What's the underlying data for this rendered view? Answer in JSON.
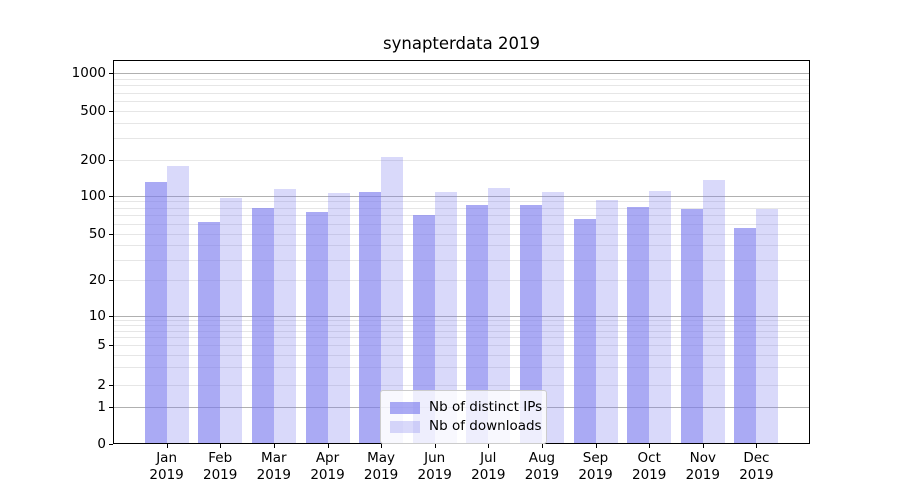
{
  "chart_data": {
    "type": "bar",
    "title": "synapterdata 2019",
    "categories": [
      "Jan",
      "Feb",
      "Mar",
      "Apr",
      "May",
      "Jun",
      "Jul",
      "Aug",
      "Sep",
      "Oct",
      "Nov",
      "Dec"
    ],
    "year": "2019",
    "series": [
      {
        "name": "Nb of distinct IPs",
        "color": "rgba(125,125,238,0.65)",
        "values": [
          130,
          62,
          80,
          75,
          108,
          71,
          85,
          85,
          66,
          81,
          78,
          56
        ]
      },
      {
        "name": "Nb of downloads",
        "color": "rgba(125,125,238,0.29)",
        "values": [
          175,
          95,
          113,
          106,
          210,
          107,
          115,
          107,
          92,
          109,
          135,
          78
        ]
      }
    ],
    "yscale": "symlog",
    "yticks": [
      1000,
      500,
      200,
      100,
      50,
      20,
      10,
      5,
      2,
      1,
      0
    ],
    "grid": "horizontal, major and minor",
    "legend_position": "lower center inside axes",
    "colors": {
      "bar_dark_on_white": "#aaaaf4",
      "bar_light_on_white": "#d8d8fa",
      "grid_major": "#b0b0b0",
      "grid_minor": "#e6e6e6",
      "axis": "#000000"
    }
  }
}
